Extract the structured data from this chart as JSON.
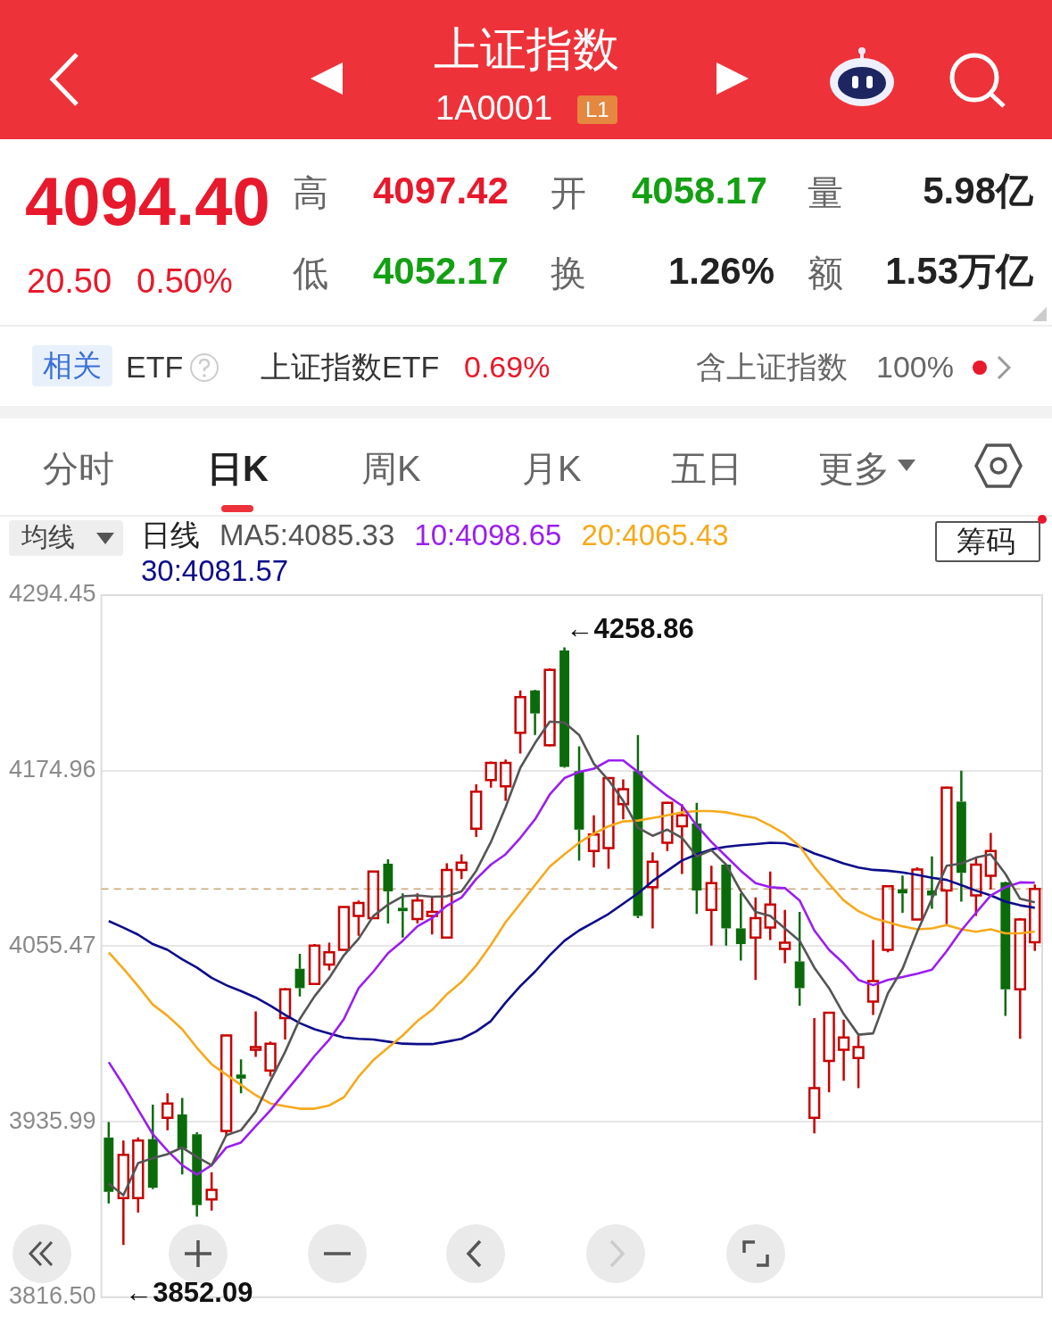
{
  "chart_data": {
    "type": "candlestick",
    "title": "上证指数",
    "subtitle": "1A0001",
    "legend_title": "日线",
    "legend": "top",
    "grid": "y",
    "tick_labels": "y",
    "marker": "none",
    "line_style": "solid",
    "categories": [
      null,
      null,
      null,
      null,
      null,
      null,
      null,
      null,
      null,
      null,
      null,
      null,
      null,
      null,
      null,
      null,
      null,
      null,
      null,
      null,
      null,
      null,
      null,
      null,
      null,
      null,
      null,
      null,
      null,
      null,
      null,
      null,
      null,
      null,
      null,
      null,
      null,
      null,
      null,
      null,
      null,
      null,
      null,
      null,
      null,
      null,
      null,
      null,
      null,
      null,
      null,
      null,
      null,
      null,
      null,
      null,
      null,
      null,
      null,
      null,
      null,
      null,
      null,
      null
    ],
    "ylim": [
      3816.5,
      4294.45
    ],
    "yticks": [
      {
        "value": 3816.5,
        "label": "3816.50"
      },
      3935.99,
      4055.47,
      4174.96,
      4294.45
    ],
    "ref_lines": [
      {
        "axis": "y",
        "value": 4094.4,
        "label": null,
        "color": "#c9a77c",
        "line_style": "dashed"
      }
    ],
    "annotations": [
      "L1",
      "4094.40",
      "20.50",
      "0.50%",
      "高",
      "4097.42",
      "开",
      "4058.17",
      "量",
      "5.98亿",
      "低",
      "4052.17",
      "换",
      "1.26%",
      "额",
      "1.53万亿",
      "相关",
      "ETF",
      "上证指数ETF",
      "0.69%",
      "含上证指数",
      "100%",
      "分时",
      "日K",
      "周K",
      "月K",
      "五日",
      "更多",
      "均线",
      "筹码",
      "←4258.86",
      "←3852.09"
    ],
    "series": [
      {
        "type": "candlestick",
        "ohlc": [
          [
            3925.2,
            3935.8,
            3880.3,
            3888.2
          ],
          [
            3884.0,
            3923.2,
            3852.09,
            3913.4
          ],
          [
            3884.0,
            3925.2,
            3874.1,
            3923.2
          ],
          [
            3924.1,
            3947.6,
            3890.0,
            3891.0
          ],
          [
            3938.6,
            3955.4,
            3930.2,
            3948.4
          ],
          [
            3940.9,
            3952.1,
            3900.0,
            3917.6
          ],
          [
            3927.4,
            3928.8,
            3871.3,
            3879.2
          ],
          [
            3883.1,
            3901.6,
            3875.5,
            3889.6
          ],
          [
            3929.7,
            3995.3,
            3926.0,
            3994.7
          ],
          [
            3968.1,
            3978.4,
            3955.4,
            3965.3
          ],
          [
            3984.9,
            4011.0,
            3980.1,
            3986.8
          ],
          [
            3970.9,
            3990.5,
            3966.7,
            3989.1
          ],
          [
            4006.5,
            4027.0,
            3991.9,
            4026.1
          ],
          [
            4040.1,
            4050.2,
            4021.3,
            4026.9
          ],
          [
            4029.7,
            4056.9,
            4029.2,
            4055.8
          ],
          [
            4042.9,
            4057.8,
            4039.0,
            4051.3
          ],
          [
            4053.0,
            4082.1,
            4053.0,
            4082.1
          ],
          [
            4076.0,
            4086.6,
            4062.5,
            4084.9
          ],
          [
            4074.6,
            4106.8,
            4074.0,
            4106.3
          ],
          [
            4111.6,
            4114.7,
            4070.9,
            4092.8
          ],
          [
            4081.6,
            4091.4,
            4061.4,
            4079.3
          ],
          [
            4074.0,
            4091.4,
            4070.9,
            4086.6
          ],
          [
            4076.0,
            4089.4,
            4063.4,
            4078.8
          ],
          [
            4061.4,
            4111.9,
            4060.6,
            4107.4
          ],
          [
            4107.4,
            4118.0,
            4101.2,
            4112.4
          ],
          [
            4135.4,
            4165.7,
            4129.8,
            4160.6
          ],
          [
            4168.5,
            4181.1,
            4163.4,
            4180.3
          ],
          [
            4164.3,
            4182.5,
            4154.5,
            4180.3
          ],
          [
            4200.7,
            4229.6,
            4186.7,
            4225.1
          ],
          [
            4229.6,
            4230.1,
            4199.3,
            4213.9
          ],
          [
            4192.3,
            4244.7,
            4191.5,
            4243.6
          ],
          [
            4256.8,
            4258.86,
            4176.9,
            4177.5
          ],
          [
            4174.6,
            4191.5,
            4113.8,
            4134.8
          ],
          [
            4120.3,
            4144.6,
            4109.0,
            4131.5
          ],
          [
            4122.2,
            4169.9,
            4108.2,
            4169.9
          ],
          [
            4152.2,
            4169.0,
            4141.8,
            4162.3
          ],
          [
            4174.6,
            4199.3,
            4074.6,
            4076.0
          ],
          [
            4095.6,
            4119.4,
            4067.6,
            4113.0
          ],
          [
            4125.9,
            4153.6,
            4120.3,
            4153.1
          ],
          [
            4137.1,
            4152.2,
            4104.6,
            4144.6
          ],
          [
            4139.0,
            4153.1,
            4077.4,
            4093.4
          ],
          [
            4080.2,
            4110.2,
            4055.8,
            4098.4
          ],
          [
            4111.0,
            4111.6,
            4055.8,
            4067.6
          ],
          [
            4067.6,
            4091.4,
            4045.7,
            4056.9
          ],
          [
            4061.4,
            4088.6,
            4032.5,
            4074.6
          ],
          [
            4068.1,
            4106.3,
            4059.7,
            4083.8
          ],
          [
            4053.6,
            4080.2,
            4043.8,
            4057.8
          ],
          [
            4045.1,
            4078.8,
            4014.9,
            4026.9
          ],
          [
            3938.6,
            4006.5,
            3928.0,
            3958.8
          ],
          [
            3977.3,
            4010.1,
            3956.0,
            4010.1
          ],
          [
            3984.9,
            4005.4,
            3963.9,
            3993.3
          ],
          [
            3979.3,
            3994.7,
            3958.8,
            3986.8
          ],
          [
            4017.7,
            4059.7,
            4008.7,
            4031.7
          ],
          [
            4053.0,
            4096.7,
            4051.3,
            4096.2
          ],
          [
            4094.2,
            4103.5,
            4078.2,
            4091.4
          ],
          [
            4073.7,
            4109.1,
            4073.2,
            4107.7
          ],
          [
            4093.4,
            4116.6,
            4081.0,
            4090.0
          ],
          [
            4093.4,
            4164.0,
            4070.4,
            4163.4
          ],
          [
            4153.9,
            4174.9,
            4085.8,
            4105.4
          ],
          [
            4090.0,
            4115.2,
            4076.0,
            4111.0
          ],
          [
            4103.4,
            4132.6,
            4094.2,
            4120.3
          ],
          [
            4099.0,
            4099.5,
            4008.1,
            4026.1
          ],
          [
            4026.1,
            4074.6,
            3992.4,
            4073.7
          ],
          [
            4058.17,
            4097.42,
            4052.17,
            4094.4
          ]
        ],
        "colors": [
          "#0b6b0b",
          "#c80000",
          "#c80000",
          "#0b6b0b",
          "#c80000",
          "#0b6b0b",
          "#0b6b0b",
          "#c80000",
          "#c80000",
          "#0b6b0b",
          "#c80000",
          "#c80000",
          "#c80000",
          "#0b6b0b",
          "#c80000",
          "#c80000",
          "#c80000",
          "#c80000",
          "#c80000",
          "#0b6b0b",
          "#0b6b0b",
          "#c80000",
          "#c80000",
          "#c80000",
          "#c80000",
          "#c80000",
          "#c80000",
          "#c80000",
          "#c80000",
          "#0b6b0b",
          "#c80000",
          "#0b6b0b",
          "#0b6b0b",
          "#c80000",
          "#c80000",
          "#c80000",
          "#0b6b0b",
          "#c80000",
          "#c80000",
          "#c80000",
          "#0b6b0b",
          "#c80000",
          "#0b6b0b",
          "#0b6b0b",
          "#c80000",
          "#c80000",
          "#c80000",
          "#0b6b0b",
          "#c80000",
          "#c80000",
          "#c80000",
          "#c80000",
          "#c80000",
          "#c80000",
          "#0b6b0b",
          "#c80000",
          "#0b6b0b",
          "#c80000",
          "#0b6b0b",
          "#c80000",
          "#c80000",
          "#0b6b0b",
          "#c80000",
          "#c80000"
        ]
      },
      {
        "type": "line",
        "name": "MA5:4085.33",
        "color": "#555555",
        "values": [
          3893.8,
          3885.9,
          3907.8,
          3911.1,
          3913.9,
          3918.4,
          3912.0,
          3906.4,
          3926.8,
          3930.2,
          3942.8,
          3963.8,
          3983.5,
          4005.9,
          4021.3,
          4033.9,
          4049.3,
          4060.5,
          4076.0,
          4083.8,
          4089.4,
          4090.0,
          4089.1,
          4089.4,
          4092.8,
          4106.8,
          4126.4,
          4150.2,
          4176.9,
          4193.7,
          4208.3,
          4207.7,
          4199.3,
          4179.7,
          4168.5,
          4154.4,
          4136.2,
          4130.6,
          4134.8,
          4129.2,
          4116.6,
          4120.8,
          4111.0,
          4092.8,
          4078.8,
          4076.0,
          4067.6,
          4059.1,
          4040.9,
          4026.9,
          4009.2,
          3995.2,
          3996.1,
          4023.3,
          4040.1,
          4065.3,
          4087.7,
          4110.2,
          4111.8,
          4115.8,
          4118.0,
          4104.6,
          4087.7,
          4085.3
        ]
      },
      {
        "type": "line",
        "name": "10:4098.65",
        "color": "#9a1ef0",
        "values": [
          3976.5,
          3961.0,
          3944.2,
          3927.4,
          3916.2,
          3906.4,
          3899.9,
          3906.4,
          3918.4,
          3921.8,
          3933.0,
          3943.7,
          3956.0,
          3968.0,
          3980.7,
          3991.9,
          4005.9,
          4026.9,
          4038.1,
          4050.7,
          4059.1,
          4069.0,
          4074.6,
          4083.0,
          4088.6,
          4101.2,
          4111.0,
          4118.0,
          4129.2,
          4141.8,
          4158.7,
          4169.9,
          4174.1,
          4176.3,
          4181.9,
          4181.9,
          4174.1,
          4165.7,
          4157.8,
          4151.1,
          4137.6,
          4126.4,
          4116.6,
          4106.8,
          4098.4,
          4095.6,
          4095.0,
          4086.6,
          4066.2,
          4053.0,
          4043.7,
          4032.5,
          4028.9,
          4032.5,
          4034.5,
          4036.7,
          4039.5,
          4052.1,
          4066.2,
          4078.2,
          4090.0,
          4095.6,
          4098.9,
          4098.7
        ]
      },
      {
        "type": "line",
        "name": "20:4065.43",
        "color": "#f5aa1c",
        "values": [
          4051.3,
          4040.1,
          4028.3,
          4015.7,
          4008.1,
          3998.9,
          3986.3,
          3975.1,
          3968.0,
          3961.0,
          3954.0,
          3948.4,
          3946.5,
          3944.8,
          3944.8,
          3947.0,
          3952.6,
          3966.6,
          3977.9,
          3986.3,
          3994.7,
          4004.5,
          4012.1,
          4022.7,
          4031.1,
          4042.3,
          4056.3,
          4071.8,
          4084.4,
          4097.0,
          4109.6,
          4118.0,
          4125.9,
          4132.0,
          4137.1,
          4140.4,
          4141.0,
          4142.7,
          4144.6,
          4146.6,
          4147.4,
          4147.4,
          4146.6,
          4144.6,
          4142.7,
          4137.6,
          4132.0,
          4123.6,
          4109.6,
          4097.8,
          4086.6,
          4079.3,
          4074.6,
          4071.8,
          4069.0,
          4067.0,
          4067.6,
          4069.8,
          4067.0,
          4065.3,
          4067.0,
          4064.2,
          4064.2,
          4065.4
        ]
      },
      {
        "type": "line",
        "name": "30:4081.57",
        "color": "#0c0c8a",
        "values": [
          4072.6,
          4068.1,
          4063.3,
          4056.9,
          4053.0,
          4046.5,
          4040.9,
          4033.9,
          4028.9,
          4024.9,
          4020.5,
          4014.9,
          4008.7,
          4003.1,
          3998.9,
          3996.1,
          3993.3,
          3992.4,
          3991.9,
          3990.5,
          3989.1,
          3988.8,
          3988.8,
          3990.5,
          3992.4,
          3997.5,
          4004.5,
          4017.1,
          4028.3,
          4038.1,
          4049.3,
          4059.1,
          4066.2,
          4071.8,
          4077.4,
          4084.4,
          4091.4,
          4099.8,
          4106.8,
          4113.8,
          4118.0,
          4121.4,
          4123.1,
          4124.2,
          4125.0,
          4125.9,
          4125.6,
          4123.1,
          4118.6,
          4115.2,
          4111.8,
          4109.0,
          4107.4,
          4106.8,
          4105.7,
          4104.0,
          4102.0,
          4100.6,
          4097.0,
          4093.3,
          4090.0,
          4085.8,
          4083.3,
          4081.6
        ]
      }
    ]
  }
}
